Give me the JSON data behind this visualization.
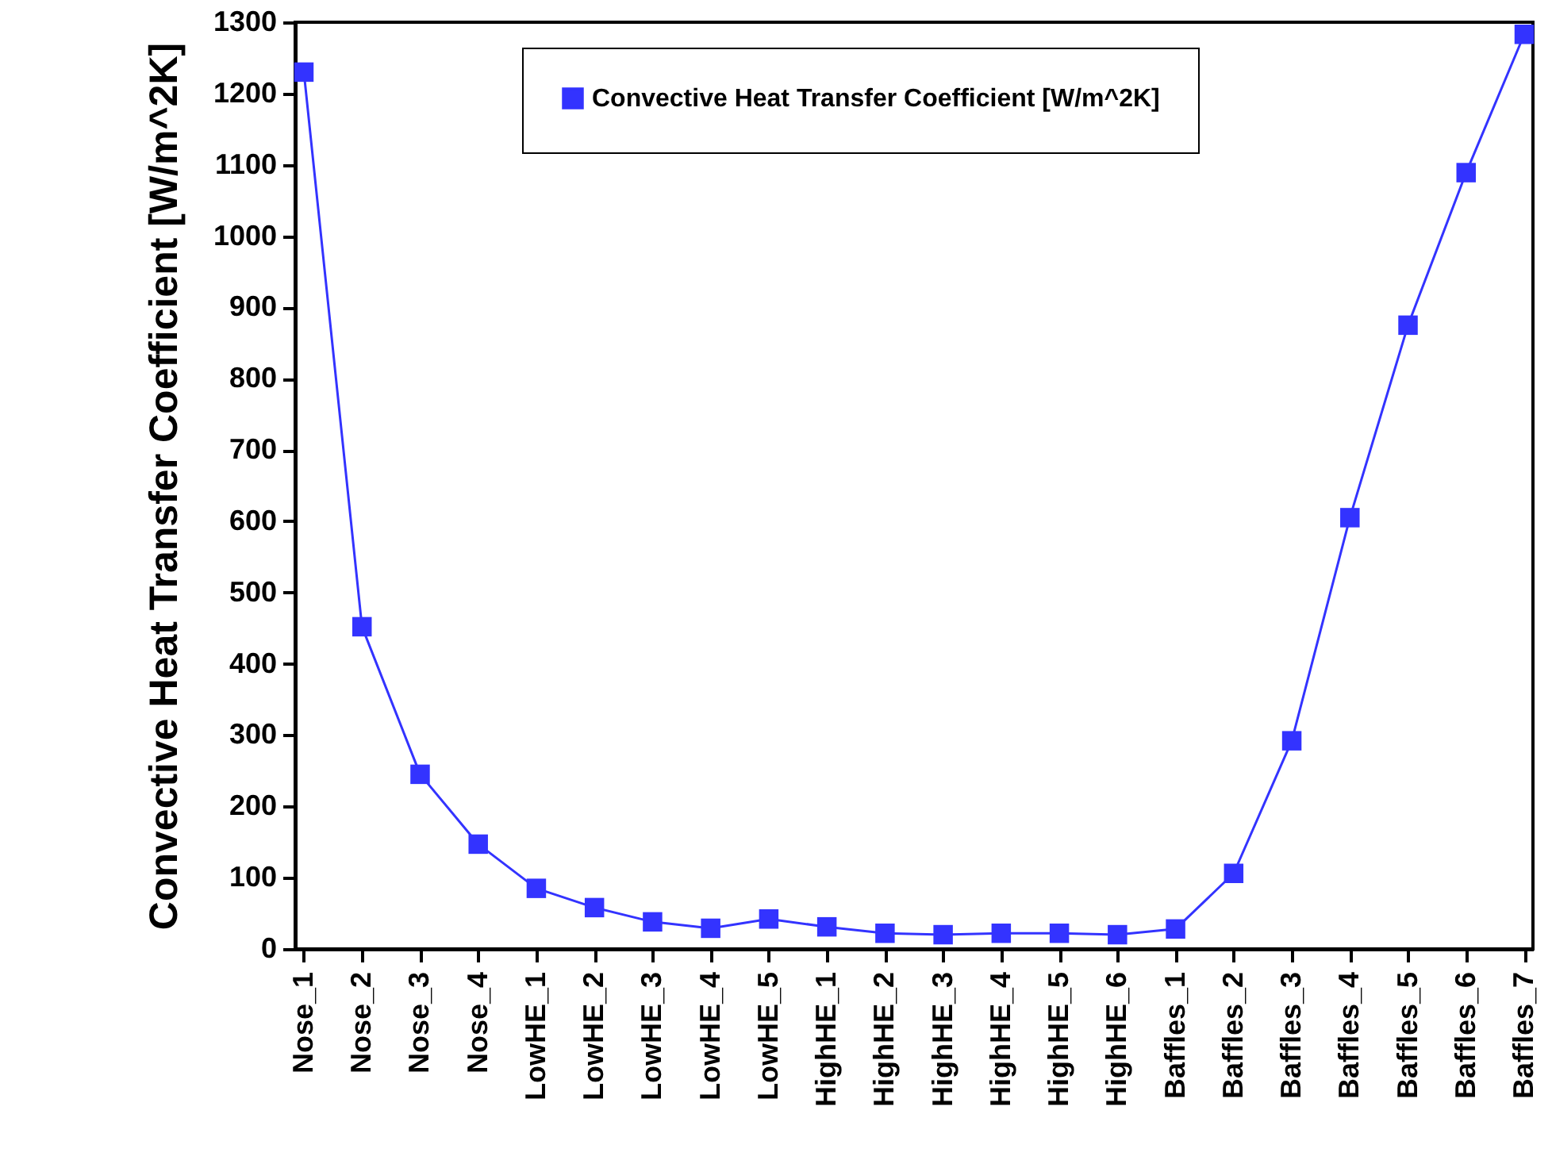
{
  "chart_data": {
    "type": "line",
    "ylabel": "Convective Heat Transfer Coefficient [W/m^2K]",
    "categories": [
      "Nose_1",
      "Nose_2",
      "Nose_3",
      "Nose_4",
      "LowHE_1",
      "LowHE_2",
      "LowHE_3",
      "LowHE_4",
      "LowHE_5",
      "HighHE_1",
      "HighHE_2",
      "HighHE_3",
      "HighHE_4",
      "HighHE_5",
      "HighHE_6",
      "Baffles_1",
      "Baffles_2",
      "Baffles_3",
      "Baffles_4",
      "Baffles_5",
      "Baffles_6",
      "Baffles_7"
    ],
    "series": [
      {
        "name": "Convective Heat Transfer Coefficient [W/m^2K]",
        "color": "#3333ff",
        "values": [
          1230,
          452,
          245,
          147,
          85,
          58,
          38,
          29,
          42,
          31,
          22,
          20,
          22,
          22,
          20,
          28,
          106,
          292,
          605,
          875,
          1089,
          1283
        ]
      }
    ],
    "ylim": [
      0,
      1300
    ],
    "yticks": [
      0,
      100,
      200,
      300,
      400,
      500,
      600,
      700,
      800,
      900,
      1000,
      1100,
      1200,
      1300
    ],
    "grid": false,
    "legend": "top",
    "marker": "square",
    "line_style": "solid"
  }
}
